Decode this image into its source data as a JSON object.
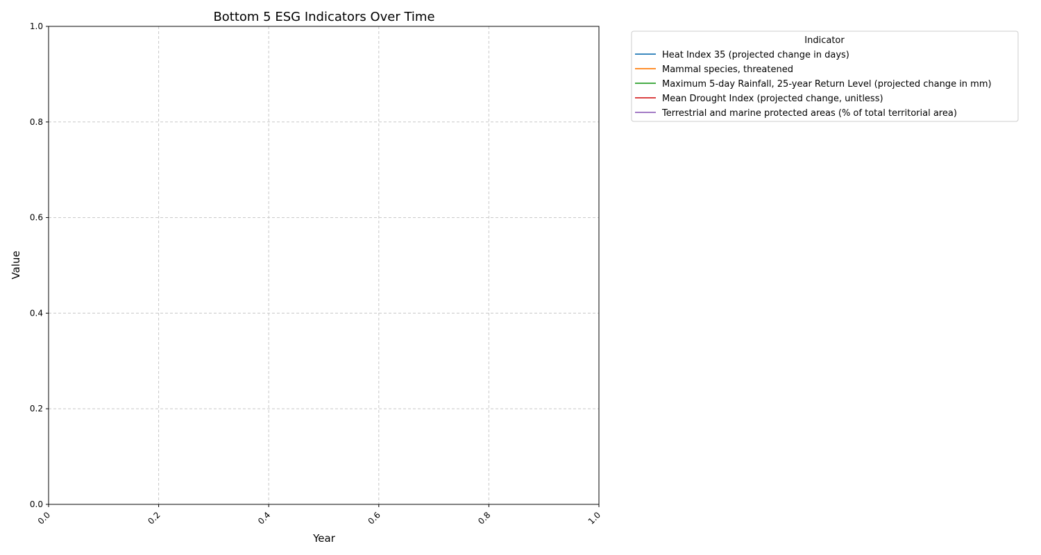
{
  "chart_data": {
    "type": "line",
    "title": "Bottom 5 ESG Indicators Over Time",
    "xlabel": "Year",
    "ylabel": "Value",
    "xlim": [
      0.0,
      1.0
    ],
    "ylim": [
      0.0,
      1.0
    ],
    "x_ticks": [
      "0.0",
      "0.2",
      "0.4",
      "0.6",
      "0.8",
      "1.0"
    ],
    "y_ticks": [
      "0.0",
      "0.2",
      "0.4",
      "0.6",
      "0.8",
      "1.0"
    ],
    "grid": true,
    "legend": {
      "title": "Indicator",
      "placement": "outside-top-right"
    },
    "series": [
      {
        "name": "Heat Index 35 (projected change in days)",
        "color": "#1f77b4",
        "values": []
      },
      {
        "name": "Mammal species, threatened",
        "color": "#ff7f0e",
        "values": []
      },
      {
        "name": "Maximum 5-day Rainfall, 25-year Return Level (projected change in mm)",
        "color": "#2ca02c",
        "values": []
      },
      {
        "name": "Mean Drought Index (projected change, unitless)",
        "color": "#d62728",
        "values": []
      },
      {
        "name": "Terrestrial and marine protected areas (% of total territorial area)",
        "color": "#9467bd",
        "values": []
      }
    ]
  }
}
